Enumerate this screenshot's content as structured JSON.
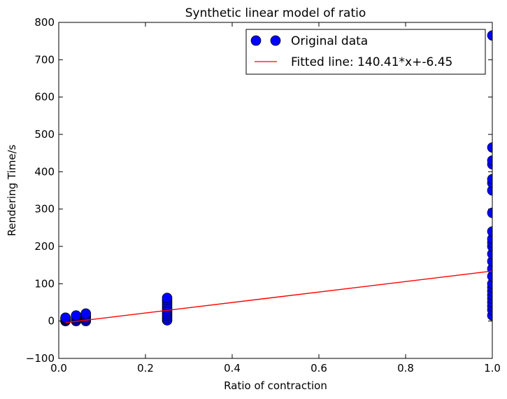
{
  "chart_data": {
    "type": "scatter",
    "title": "Synthetic linear model of ratio",
    "xlabel": "Ratio of contraction",
    "ylabel": "Rendering Time/s",
    "xlim": [
      0.0,
      1.0
    ],
    "ylim": [
      -100,
      800
    ],
    "xticks": [
      "0.0",
      "0.2",
      "0.4",
      "0.6",
      "0.8",
      "1.0"
    ],
    "yticks": [
      "−100",
      "0",
      "100",
      "200",
      "300",
      "400",
      "500",
      "600",
      "700",
      "800"
    ],
    "grid": false,
    "legend_position": "upper right",
    "series": [
      {
        "name": "Original data",
        "kind": "scatter",
        "color": "#0000ff",
        "points": [
          [
            0.0156,
            0
          ],
          [
            0.0156,
            2
          ],
          [
            0.0156,
            4
          ],
          [
            0.0156,
            6
          ],
          [
            0.0156,
            8
          ],
          [
            0.0156,
            9
          ],
          [
            0.04,
            0
          ],
          [
            0.04,
            3
          ],
          [
            0.04,
            6
          ],
          [
            0.04,
            9
          ],
          [
            0.04,
            12
          ],
          [
            0.04,
            15
          ],
          [
            0.0625,
            0
          ],
          [
            0.0625,
            4
          ],
          [
            0.0625,
            8
          ],
          [
            0.0625,
            12
          ],
          [
            0.0625,
            16
          ],
          [
            0.0625,
            20
          ],
          [
            0.25,
            2
          ],
          [
            0.25,
            8
          ],
          [
            0.25,
            14
          ],
          [
            0.25,
            20
          ],
          [
            0.25,
            26
          ],
          [
            0.25,
            32
          ],
          [
            0.25,
            38
          ],
          [
            0.25,
            44
          ],
          [
            0.25,
            50
          ],
          [
            0.25,
            56
          ],
          [
            0.25,
            62
          ],
          [
            1.0,
            15
          ],
          [
            1.0,
            30
          ],
          [
            1.0,
            40
          ],
          [
            1.0,
            50
          ],
          [
            1.0,
            60
          ],
          [
            1.0,
            70
          ],
          [
            1.0,
            80
          ],
          [
            1.0,
            90
          ],
          [
            1.0,
            100
          ],
          [
            1.0,
            120
          ],
          [
            1.0,
            140
          ],
          [
            1.0,
            160
          ],
          [
            1.0,
            180
          ],
          [
            1.0,
            200
          ],
          [
            1.0,
            210
          ],
          [
            1.0,
            220
          ],
          [
            1.0,
            240
          ],
          [
            1.0,
            290
          ],
          [
            1.0,
            350
          ],
          [
            1.0,
            370
          ],
          [
            1.0,
            380
          ],
          [
            1.0,
            420
          ],
          [
            1.0,
            430
          ],
          [
            1.0,
            465
          ],
          [
            1.0,
            765
          ]
        ]
      },
      {
        "name": "Fitted line: 140.41*x+-6.45",
        "kind": "line",
        "color": "#ff0000",
        "slope": 140.41,
        "intercept": -6.45,
        "x": [
          0.0156,
          1.0
        ]
      }
    ]
  }
}
